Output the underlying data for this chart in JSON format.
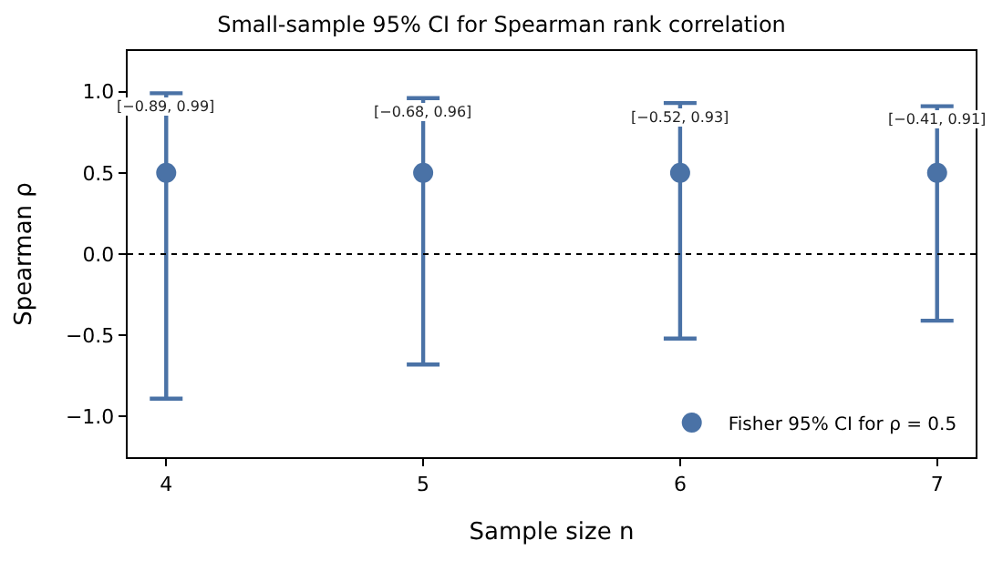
{
  "chart_data": {
    "type": "scatter",
    "title": "Small-sample 95% CI for Spearman rank correlation",
    "xlabel": "Sample size n",
    "ylabel": "Spearman ρ",
    "x": [
      4,
      5,
      6,
      7
    ],
    "series": [
      {
        "name": "Fisher 95% CI for ρ = 0.5",
        "color": "#4a72a6",
        "values": [
          0.5,
          0.5,
          0.5,
          0.5
        ],
        "errors": [
          [
            -0.89,
            0.99
          ],
          [
            -0.68,
            0.96
          ],
          [
            -0.52,
            0.93
          ],
          [
            -0.41,
            0.91
          ]
        ]
      }
    ],
    "annotations": [
      {
        "text": "[−0.89, 0.99]",
        "x": 4,
        "y": 0.99
      },
      {
        "text": "[−0.68, 0.96]",
        "x": 5,
        "y": 0.96
      },
      {
        "text": "[−0.52, 0.93]",
        "x": 6,
        "y": 0.93
      },
      {
        "text": "[−0.41, 0.91]",
        "x": 7,
        "y": 0.91
      }
    ],
    "ref_lines": [
      {
        "axis": "y",
        "value": 0,
        "color": "#000000",
        "line_style": "dotted"
      }
    ],
    "xlim": [
      3.85,
      7.15
    ],
    "xticks": [
      4,
      5,
      6,
      7
    ],
    "ylim": [
      -1.25,
      1.25
    ],
    "yticks": [
      {
        "value": -1.0,
        "label": "−1.0"
      },
      {
        "value": -0.5,
        "label": "−0.5"
      },
      {
        "value": 0.0,
        "label": "0.0"
      },
      {
        "value": 0.5,
        "label": "0.5"
      },
      {
        "value": 1.0,
        "label": "1.0"
      }
    ],
    "legend": "bottom right",
    "marker": "circle"
  }
}
